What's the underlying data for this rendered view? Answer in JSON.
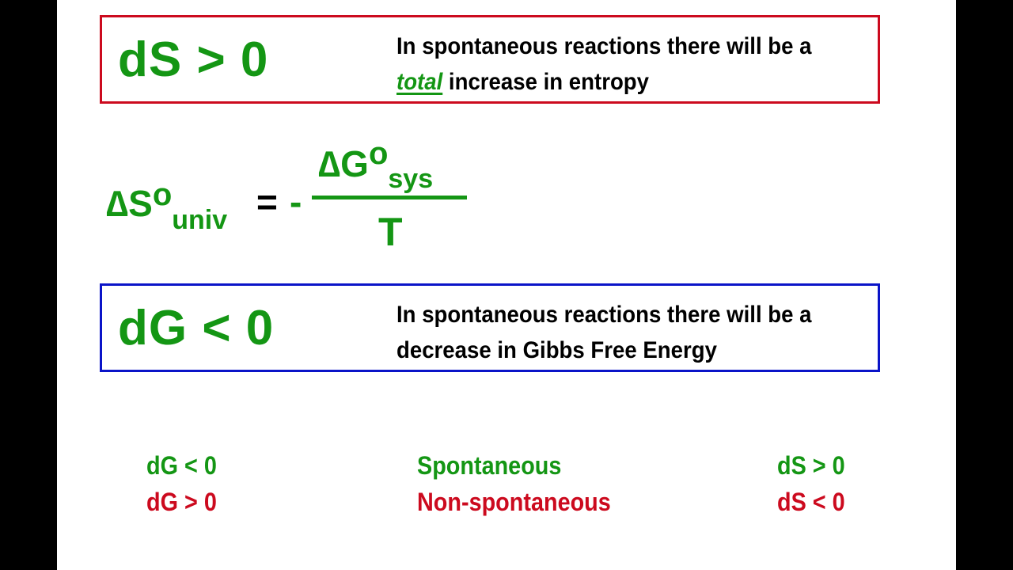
{
  "box_top": {
    "expression": "dS > 0",
    "line1": "In spontaneous reactions there will be a",
    "emphasis": "total",
    "line2_rest": " increase in entropy"
  },
  "formula": {
    "lhs_symbol": "∆S",
    "lhs_sup": "o",
    "lhs_sub": "univ",
    "equals": "=",
    "minus": "-",
    "num_symbol": "∆G",
    "num_sup": "o",
    "num_sub": "sys",
    "denominator": "T"
  },
  "box_bottom": {
    "expression": "dG < 0",
    "line1": "In spontaneous reactions there will be a",
    "line2": "decrease in Gibbs Free Energy"
  },
  "summary": {
    "row1": {
      "left": "dG < 0",
      "middle": "Spontaneous",
      "right": "dS > 0"
    },
    "row2": {
      "left": "dG > 0",
      "middle": "Non-spontaneous",
      "right": "dS < 0"
    }
  },
  "colors": {
    "green": "#149614",
    "red": "#cc0a1e",
    "blue": "#0a14c8"
  }
}
